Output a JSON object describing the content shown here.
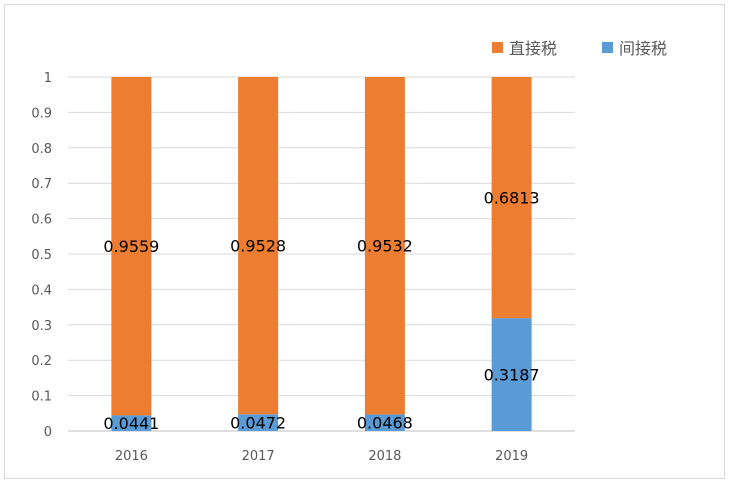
{
  "chart_data": {
    "type": "bar",
    "stacked": true,
    "categories": [
      "2016",
      "2017",
      "2018",
      "2019"
    ],
    "series": [
      {
        "name": "间接税",
        "color": "#5b9bd5",
        "values": [
          0.0441,
          0.0472,
          0.0468,
          0.3187
        ],
        "labels": [
          "0.0441",
          "0.0472",
          "0.0468",
          "0.3187"
        ]
      },
      {
        "name": "直接税",
        "color": "#ed7d31",
        "values": [
          0.9559,
          0.9528,
          0.9532,
          0.6813
        ],
        "labels": [
          "0.9559",
          "0.9528",
          "0.9532",
          "0.6813"
        ]
      }
    ],
    "legend_order": [
      "直接税",
      "间接税"
    ],
    "y_ticks": [
      "0",
      "0.1",
      "0.2",
      "0.3",
      "0.4",
      "0.5",
      "0.6",
      "0.7",
      "0.8",
      "0.9",
      "1"
    ],
    "ylim": [
      0,
      1
    ],
    "grid": true,
    "legend_position": "top-right"
  }
}
